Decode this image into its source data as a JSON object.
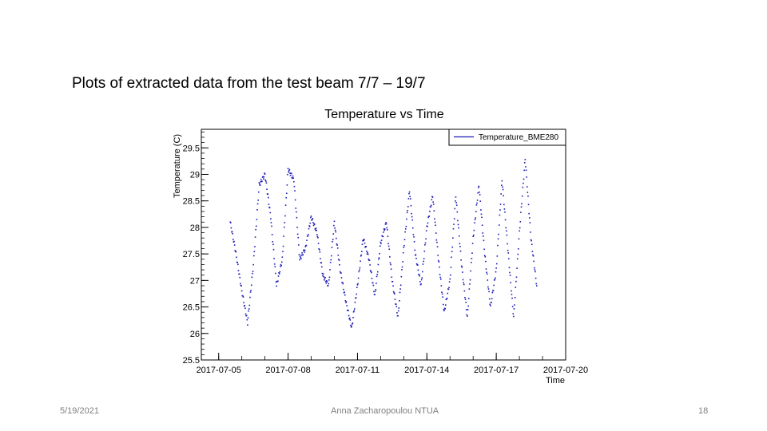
{
  "slide": {
    "title": "Plots of extracted data from the test beam 7/7 – 19/7",
    "footer_date": "5/19/2021",
    "footer_center": "Anna Zacharopoulou NTUA",
    "page_number": "18"
  },
  "chart_data": {
    "type": "scatter",
    "title": "Temperature vs Time",
    "xlabel": "Time",
    "ylabel": "Temperature (C)",
    "x_ticks": [
      "2017-07-05",
      "2017-07-08",
      "2017-07-11",
      "2017-07-14",
      "2017-07-17",
      "2017-07-20"
    ],
    "y_ticks": [
      25.5,
      26,
      26.5,
      27,
      27.5,
      28,
      28.5,
      29,
      29.5
    ],
    "xlim": [
      "2017-07-04T06:00",
      "2017-07-20T00:00"
    ],
    "ylim": [
      25.5,
      29.85
    ],
    "legend": "top-right",
    "color": "#1c1cb8",
    "series": [
      {
        "name": "Temperature_BME280",
        "points": [
          [
            "2017-07-05T12:00",
            28.1
          ],
          [
            "2017-07-05T18:00",
            27.5
          ],
          [
            "2017-07-06T00:00",
            26.8
          ],
          [
            "2017-07-06T06:00",
            26.2
          ],
          [
            "2017-07-06T12:00",
            27.3
          ],
          [
            "2017-07-06T18:00",
            28.8
          ],
          [
            "2017-07-07T00:00",
            29.0
          ],
          [
            "2017-07-07T06:00",
            28.2
          ],
          [
            "2017-07-07T12:00",
            26.9
          ],
          [
            "2017-07-07T18:00",
            27.4
          ],
          [
            "2017-07-08T00:00",
            29.1
          ],
          [
            "2017-07-08T06:00",
            28.9
          ],
          [
            "2017-07-08T12:00",
            27.4
          ],
          [
            "2017-07-08T18:00",
            27.6
          ],
          [
            "2017-07-09T00:00",
            28.2
          ],
          [
            "2017-07-09T06:00",
            27.9
          ],
          [
            "2017-07-09T12:00",
            27.1
          ],
          [
            "2017-07-09T18:00",
            26.9
          ],
          [
            "2017-07-10T00:00",
            28.1
          ],
          [
            "2017-07-10T06:00",
            27.2
          ],
          [
            "2017-07-10T12:00",
            26.6
          ],
          [
            "2017-07-10T18:00",
            26.1
          ],
          [
            "2017-07-11T00:00",
            26.9
          ],
          [
            "2017-07-11T06:00",
            27.8
          ],
          [
            "2017-07-11T12:00",
            27.4
          ],
          [
            "2017-07-11T18:00",
            26.7
          ],
          [
            "2017-07-12T00:00",
            27.7
          ],
          [
            "2017-07-12T06:00",
            28.1
          ],
          [
            "2017-07-12T12:00",
            27.0
          ],
          [
            "2017-07-12T18:00",
            26.3
          ],
          [
            "2017-07-13T00:00",
            27.6
          ],
          [
            "2017-07-13T06:00",
            28.7
          ],
          [
            "2017-07-13T12:00",
            27.5
          ],
          [
            "2017-07-13T18:00",
            26.9
          ],
          [
            "2017-07-14T00:00",
            28.0
          ],
          [
            "2017-07-14T06:00",
            28.6
          ],
          [
            "2017-07-14T12:00",
            27.4
          ],
          [
            "2017-07-14T18:00",
            26.4
          ],
          [
            "2017-07-15T00:00",
            27.0
          ],
          [
            "2017-07-15T06:00",
            28.6
          ],
          [
            "2017-07-15T12:00",
            27.3
          ],
          [
            "2017-07-15T18:00",
            26.3
          ],
          [
            "2017-07-16T00:00",
            27.8
          ],
          [
            "2017-07-16T06:00",
            28.8
          ],
          [
            "2017-07-16T12:00",
            27.5
          ],
          [
            "2017-07-16T18:00",
            26.5
          ],
          [
            "2017-07-17T00:00",
            27.2
          ],
          [
            "2017-07-17T06:00",
            28.9
          ],
          [
            "2017-07-17T12:00",
            27.6
          ],
          [
            "2017-07-17T18:00",
            26.3
          ],
          [
            "2017-07-18T00:00",
            27.9
          ],
          [
            "2017-07-18T06:00",
            29.3
          ],
          [
            "2017-07-18T12:00",
            27.8
          ],
          [
            "2017-07-18T18:00",
            26.9
          ]
        ]
      }
    ]
  }
}
